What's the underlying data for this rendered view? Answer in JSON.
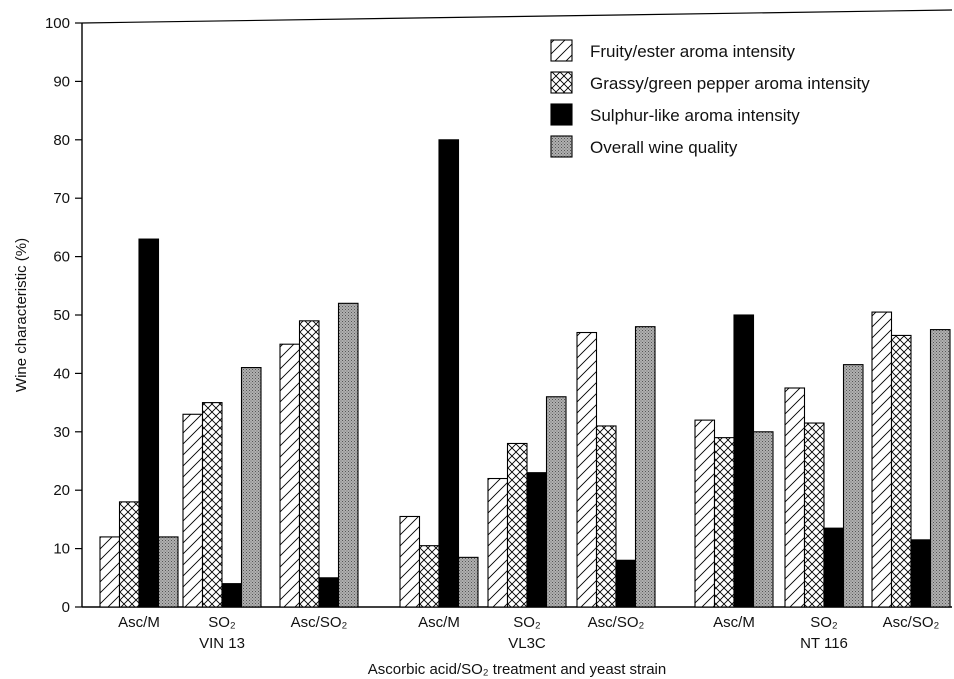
{
  "chart_data": {
    "type": "bar",
    "title": "",
    "xlabel": "Ascorbic acid/SO₂ treatment and yeast strain",
    "ylabel": "Wine characteristic (%)",
    "ylim": [
      0,
      100
    ],
    "yticks": [
      0,
      10,
      20,
      30,
      40,
      50,
      60,
      70,
      80,
      90,
      100
    ],
    "grid": false,
    "legend_position": "top-right",
    "categories": [
      "Asc/M",
      "SO₂",
      "Asc/SO₂",
      "Asc/M",
      "SO₂",
      "Asc/SO₂",
      "Asc/M",
      "SO₂",
      "Asc/SO₂"
    ],
    "groups": [
      {
        "label": "VIN 13",
        "categories": [
          0,
          1,
          2
        ]
      },
      {
        "label": "VL3C",
        "categories": [
          3,
          4,
          5
        ]
      },
      {
        "label": "NT 116",
        "categories": [
          6,
          7,
          8
        ]
      }
    ],
    "series": [
      {
        "name": "Fruity/ester aroma intensity",
        "pattern": "diagonal-hatch",
        "values": [
          12,
          33,
          45,
          15.5,
          22,
          47,
          32,
          37.5,
          50.5
        ]
      },
      {
        "name": "Grassy/green pepper aroma intensity",
        "pattern": "cross-hatch",
        "values": [
          18,
          35,
          49,
          10.5,
          28,
          31,
          29,
          31.5,
          46.5
        ]
      },
      {
        "name": "Sulphur-like aroma intensity",
        "pattern": "solid-black",
        "values": [
          63,
          4,
          5,
          80,
          23,
          8,
          50,
          13.5,
          11.5
        ]
      },
      {
        "name": "Overall wine quality",
        "pattern": "gray-stipple",
        "values": [
          12,
          41,
          52,
          8.5,
          36,
          48,
          30,
          41.5,
          47.5
        ]
      }
    ],
    "colors": {
      "outline": "#000000",
      "solid": "#000000",
      "gray": "#9a9a9a"
    }
  }
}
